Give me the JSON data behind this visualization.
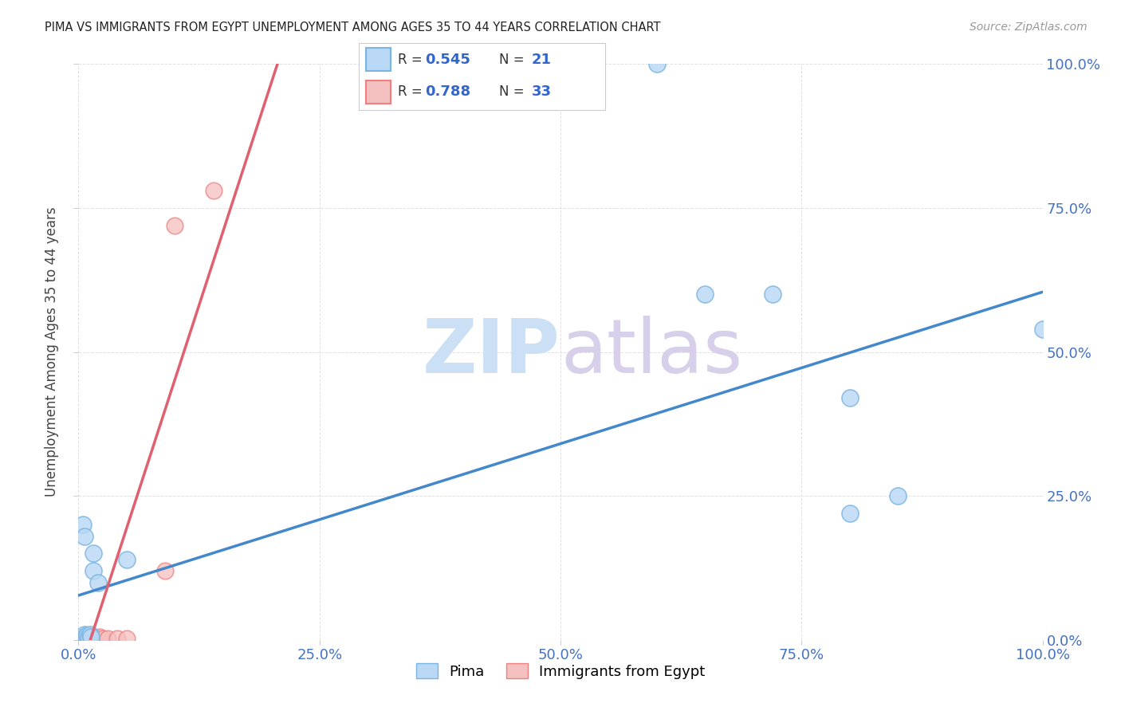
{
  "title": "PIMA VS IMMIGRANTS FROM EGYPT UNEMPLOYMENT AMONG AGES 35 TO 44 YEARS CORRELATION CHART",
  "source": "Source: ZipAtlas.com",
  "ylabel": "Unemployment Among Ages 35 to 44 years",
  "pima_color": "#7ab4e0",
  "pima_color_fill": "#b8d8f5",
  "egypt_color": "#f08080",
  "egypt_color_fill": "#f5c0c0",
  "pima_R": "0.545",
  "pima_N": "21",
  "egypt_R": "0.788",
  "egypt_N": "33",
  "pima_scatter": [
    [
      0.005,
      0.005
    ],
    [
      0.006,
      0.01
    ],
    [
      0.007,
      0.005
    ],
    [
      0.008,
      0.005
    ],
    [
      0.009,
      0.008
    ],
    [
      0.01,
      0.005
    ],
    [
      0.012,
      0.01
    ],
    [
      0.013,
      0.005
    ],
    [
      0.015,
      0.12
    ],
    [
      0.015,
      0.15
    ],
    [
      0.02,
      0.1
    ],
    [
      0.05,
      0.14
    ],
    [
      0.005,
      0.2
    ],
    [
      0.006,
      0.18
    ],
    [
      0.6,
      1.0
    ],
    [
      0.65,
      0.6
    ],
    [
      0.72,
      0.6
    ],
    [
      0.8,
      0.42
    ],
    [
      0.8,
      0.22
    ],
    [
      0.85,
      0.25
    ],
    [
      1.0,
      0.54
    ]
  ],
  "egypt_scatter": [
    [
      0.003,
      0.003
    ],
    [
      0.004,
      0.003
    ],
    [
      0.005,
      0.003
    ],
    [
      0.005,
      0.005
    ],
    [
      0.006,
      0.003
    ],
    [
      0.006,
      0.005
    ],
    [
      0.007,
      0.003
    ],
    [
      0.007,
      0.006
    ],
    [
      0.008,
      0.003
    ],
    [
      0.008,
      0.005
    ],
    [
      0.008,
      0.008
    ],
    [
      0.009,
      0.003
    ],
    [
      0.009,
      0.006
    ],
    [
      0.01,
      0.003
    ],
    [
      0.01,
      0.005
    ],
    [
      0.01,
      0.008
    ],
    [
      0.011,
      0.003
    ],
    [
      0.012,
      0.003
    ],
    [
      0.012,
      0.006
    ],
    [
      0.013,
      0.003
    ],
    [
      0.014,
      0.003
    ],
    [
      0.015,
      0.003
    ],
    [
      0.016,
      0.003
    ],
    [
      0.018,
      0.003
    ],
    [
      0.02,
      0.003
    ],
    [
      0.022,
      0.005
    ],
    [
      0.025,
      0.003
    ],
    [
      0.03,
      0.003
    ],
    [
      0.04,
      0.003
    ],
    [
      0.05,
      0.003
    ],
    [
      0.09,
      0.12
    ],
    [
      0.1,
      0.72
    ],
    [
      0.14,
      0.78
    ]
  ],
  "background_color": "#ffffff",
  "grid_color": "#cccccc",
  "watermark_zip_color": "#cce0f5",
  "watermark_atlas_color": "#d8d0ea",
  "tick_label_color": "#4472c4",
  "xmin": 0.0,
  "xmax": 1.0,
  "ymin": 0.0,
  "ymax": 1.0,
  "xticks": [
    0.0,
    0.25,
    0.5,
    0.75,
    1.0
  ],
  "yticks": [
    0.0,
    0.25,
    0.5,
    0.75,
    1.0
  ],
  "xticklabels": [
    "0.0%",
    "25.0%",
    "50.0%",
    "75.0%",
    "100.0%"
  ],
  "yticklabels": [
    "0.0%",
    "25.0%",
    "50.0%",
    "75.0%",
    "100.0%"
  ]
}
